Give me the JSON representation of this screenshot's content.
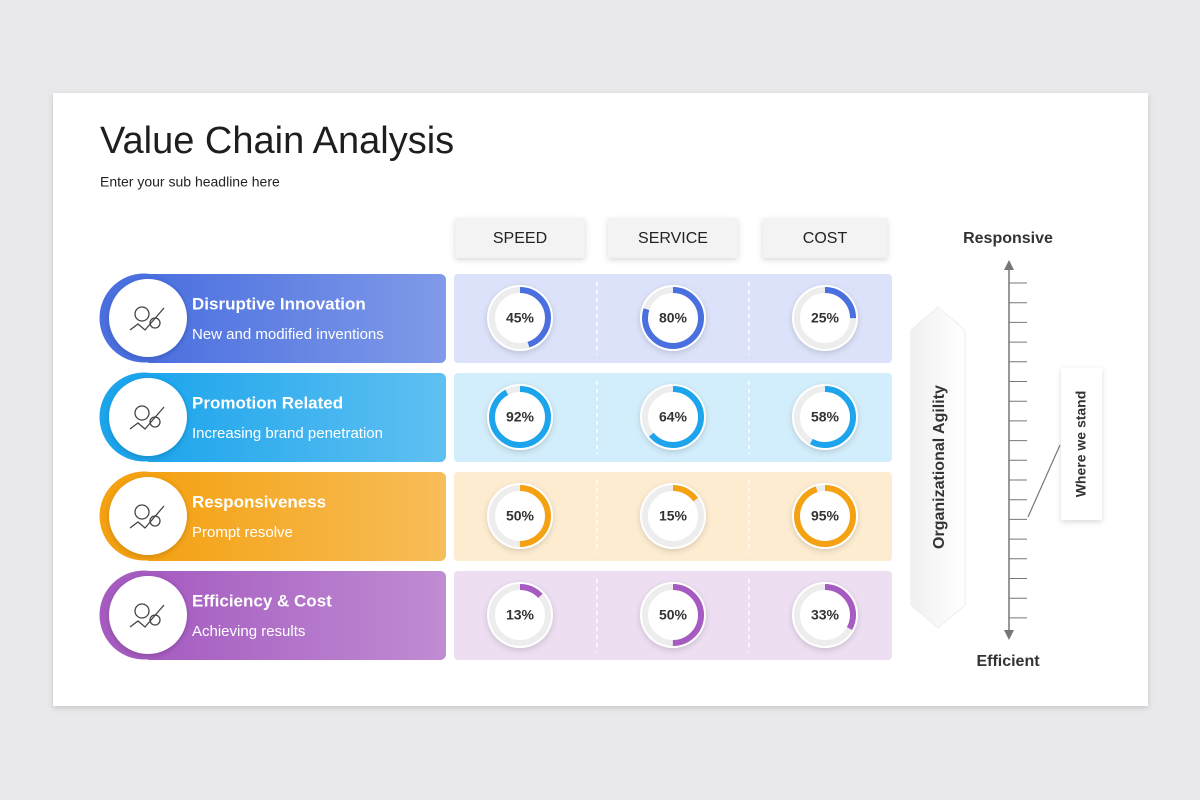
{
  "title": "Value Chain Analysis",
  "subtitle": "Enter your sub headline here",
  "columns": [
    "SPEED",
    "SERVICE",
    "COST"
  ],
  "rows": [
    {
      "title": "Disruptive Innovation",
      "description": "New and modified inventions",
      "color": "#4a6fdf",
      "values": [
        45,
        80,
        25
      ],
      "value_labels": [
        "45%",
        "80%",
        "25%"
      ]
    },
    {
      "title": "Promotion Related",
      "description": "Increasing brand penetration",
      "color": "#1ca5ec",
      "values": [
        92,
        64,
        58
      ],
      "value_labels": [
        "92%",
        "64%",
        "58%"
      ]
    },
    {
      "title": "Responsiveness",
      "description": "Prompt resolve",
      "color": "#f4a112",
      "values": [
        50,
        15,
        95
      ],
      "value_labels": [
        "50%",
        "15%",
        "95%"
      ]
    },
    {
      "title": "Efficiency & Cost",
      "description": "Achieving results",
      "color": "#a55bc0",
      "values": [
        13,
        50,
        33
      ],
      "value_labels": [
        "13%",
        "50%",
        "33%"
      ]
    }
  ],
  "scale": {
    "top": "Responsive",
    "bottom": "Efficient",
    "axis_label": "Organizational Agility",
    "marker_label": "Where we stand"
  }
}
